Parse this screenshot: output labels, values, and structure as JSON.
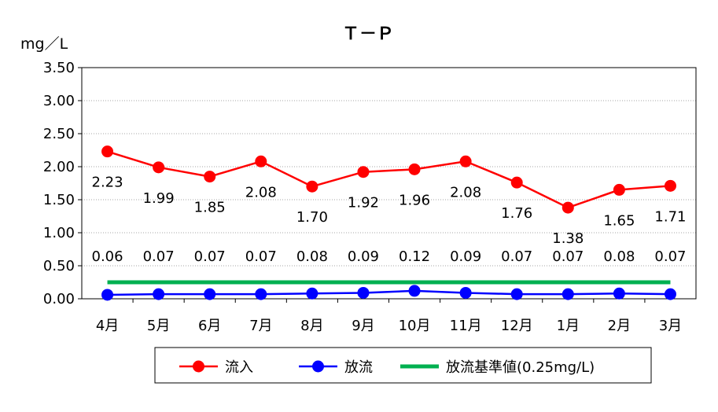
{
  "chart_data": {
    "type": "line",
    "title": "Ｔ－Ｐ",
    "ylabel": "mg／L",
    "xlabel": "",
    "ylim": [
      0,
      3.5
    ],
    "yticks": [
      0.0,
      0.5,
      1.0,
      1.5,
      2.0,
      2.5,
      3.0,
      3.5
    ],
    "ytick_labels": [
      "0.00",
      "0.50",
      "1.00",
      "1.50",
      "2.00",
      "2.50",
      "3.00",
      "3.50"
    ],
    "categories": [
      "4月",
      "5月",
      "6月",
      "7月",
      "8月",
      "9月",
      "10月",
      "11月",
      "12月",
      "1月",
      "2月",
      "3月"
    ],
    "grid": "horizontal",
    "legend_position": "bottom",
    "series": [
      {
        "name": "流入",
        "color": "#ff0000",
        "marker": "circle",
        "values": [
          2.23,
          1.99,
          1.85,
          2.08,
          1.7,
          1.92,
          1.96,
          2.08,
          1.76,
          1.38,
          1.65,
          1.71
        ],
        "labels": [
          "2.23",
          "1.99",
          "1.85",
          "2.08",
          "1.70",
          "1.92",
          "1.96",
          "2.08",
          "1.76",
          "1.38",
          "1.65",
          "1.71"
        ]
      },
      {
        "name": "放流",
        "color": "#0000ff",
        "marker": "circle",
        "values": [
          0.06,
          0.07,
          0.07,
          0.07,
          0.08,
          0.09,
          0.12,
          0.09,
          0.07,
          0.07,
          0.08,
          0.07
        ],
        "labels": [
          "0.06",
          "0.07",
          "0.07",
          "0.07",
          "0.08",
          "0.09",
          "0.12",
          "0.09",
          "0.07",
          "0.07",
          "0.08",
          "0.07"
        ]
      },
      {
        "name": "放流基準値(0.25mg/L)",
        "color": "#00b050",
        "marker": "none",
        "values": [
          0.25,
          0.25,
          0.25,
          0.25,
          0.25,
          0.25,
          0.25,
          0.25,
          0.25,
          0.25,
          0.25,
          0.25
        ]
      }
    ]
  }
}
